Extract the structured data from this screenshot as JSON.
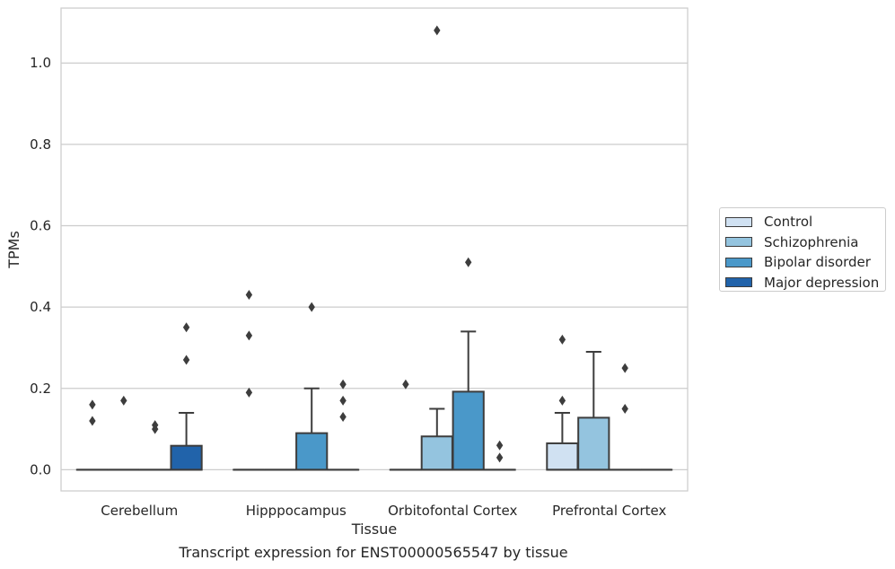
{
  "chart_data": {
    "type": "box",
    "title": "",
    "caption": "Transcript expression for ENST00000565547 by tissue",
    "xlabel": "Tissue",
    "ylabel": "TPMs",
    "ylim": [
      -0.052,
      1.135
    ],
    "yticks": [
      "0.0",
      "0.2",
      "0.4",
      "0.6",
      "0.8",
      "1.0"
    ],
    "grid": "horizontal",
    "legend_position": "right",
    "categories": [
      "Cerebellum",
      "Hipppocampus",
      "Orbitofontal Cortex",
      "Prefrontal Cortex"
    ],
    "series": [
      {
        "name": "Control",
        "color": "#d0e1f2",
        "boxes": [
          {
            "q1": 0,
            "median": 0,
            "q3": 0,
            "whislo": 0,
            "whishi": 0,
            "fliers": [
              0.16,
              0.12
            ]
          },
          {
            "q1": 0,
            "median": 0,
            "q3": 0,
            "whislo": 0,
            "whishi": 0,
            "fliers": [
              0.43,
              0.33,
              0.19
            ]
          },
          {
            "q1": 0,
            "median": 0,
            "q3": 0,
            "whislo": 0,
            "whishi": 0,
            "fliers": [
              0.21
            ]
          },
          {
            "q1": 0,
            "median": 0,
            "q3": 0.065,
            "whislo": 0,
            "whishi": 0.14,
            "fliers": [
              0.32,
              0.17
            ]
          }
        ]
      },
      {
        "name": "Schizophrenia",
        "color": "#94c4df",
        "boxes": [
          {
            "q1": 0,
            "median": 0,
            "q3": 0,
            "whislo": 0,
            "whishi": 0,
            "fliers": [
              0.17
            ]
          },
          {
            "q1": 0,
            "median": 0,
            "q3": 0,
            "whislo": 0,
            "whishi": 0,
            "fliers": []
          },
          {
            "q1": 0,
            "median": 0,
            "q3": 0.082,
            "whislo": 0,
            "whishi": 0.15,
            "fliers": [
              1.08
            ]
          },
          {
            "q1": 0,
            "median": 0,
            "q3": 0.128,
            "whislo": 0,
            "whishi": 0.29,
            "fliers": []
          }
        ]
      },
      {
        "name": "Bipolar disorder",
        "color": "#4a98c9",
        "boxes": [
          {
            "q1": 0,
            "median": 0,
            "q3": 0,
            "whislo": 0,
            "whishi": 0,
            "fliers": [
              0.11,
              0.1
            ]
          },
          {
            "q1": 0,
            "median": 0,
            "q3": 0.09,
            "whislo": 0,
            "whishi": 0.2,
            "fliers": [
              0.4
            ]
          },
          {
            "q1": 0,
            "median": 0,
            "q3": 0.192,
            "whislo": 0,
            "whishi": 0.34,
            "fliers": [
              0.51
            ]
          },
          {
            "q1": 0,
            "median": 0,
            "q3": 0,
            "whislo": 0,
            "whishi": 0,
            "fliers": [
              0.25,
              0.15
            ]
          }
        ]
      },
      {
        "name": "Major depression",
        "color": "#2163aa",
        "boxes": [
          {
            "q1": 0,
            "median": 0,
            "q3": 0.059,
            "whislo": 0,
            "whishi": 0.14,
            "fliers": [
              0.35,
              0.27
            ]
          },
          {
            "q1": 0,
            "median": 0,
            "q3": 0,
            "whislo": 0,
            "whishi": 0,
            "fliers": [
              0.21,
              0.17,
              0.13
            ]
          },
          {
            "q1": 0,
            "median": 0,
            "q3": 0,
            "whislo": 0,
            "whishi": 0,
            "fliers": [
              0.06,
              0.03
            ]
          },
          {
            "q1": 0,
            "median": 0,
            "q3": 0,
            "whislo": 0,
            "whishi": 0,
            "fliers": []
          }
        ]
      }
    ]
  }
}
